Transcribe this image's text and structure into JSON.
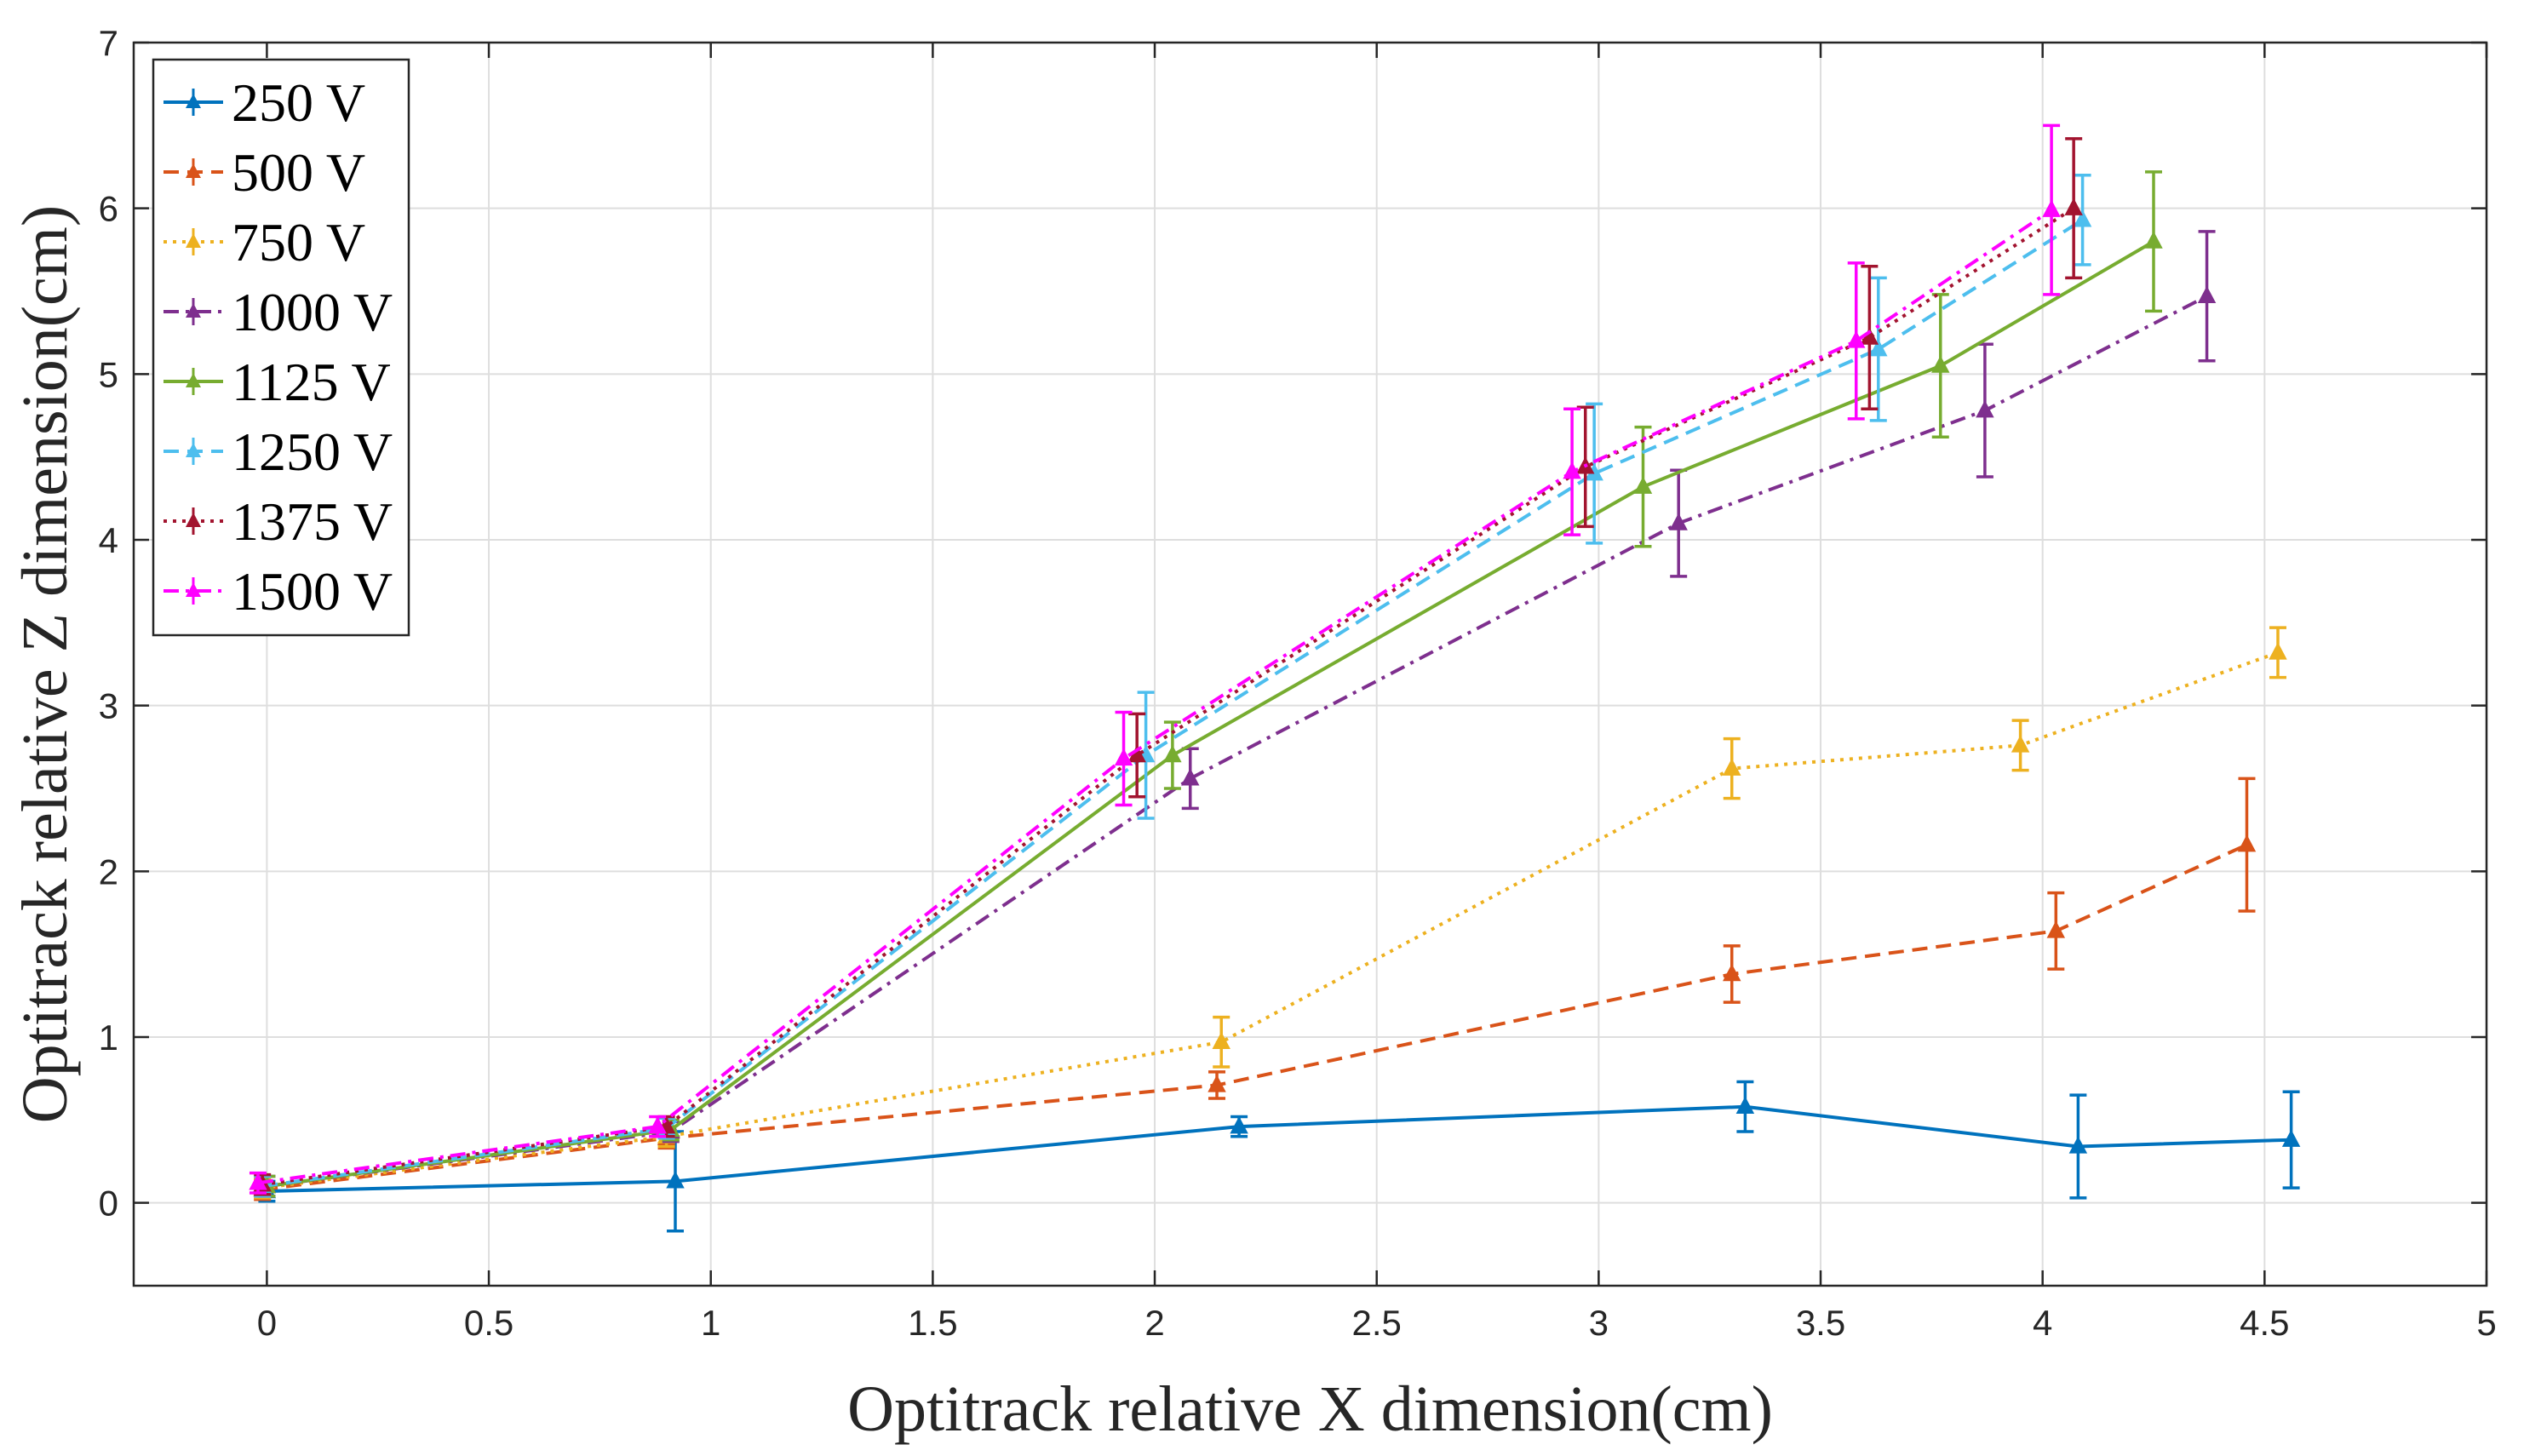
{
  "chart_data": {
    "type": "line",
    "title": "",
    "xlabel": "Optitrack relative X dimension(cm)",
    "ylabel": "Optitrack relative Z dimension(cm)",
    "xlim": [
      -0.3,
      5
    ],
    "ylim": [
      -0.5,
      7
    ],
    "xticks": [
      0,
      0.5,
      1,
      1.5,
      2,
      2.5,
      3,
      3.5,
      4,
      4.5,
      5
    ],
    "yticks": [
      0,
      1,
      2,
      3,
      4,
      5,
      6,
      7
    ],
    "xtick_labels": [
      "0",
      "0.5",
      "1",
      "1.5",
      "2",
      "2.5",
      "3",
      "3.5",
      "4",
      "4.5",
      "5"
    ],
    "ytick_labels": [
      "0",
      "1",
      "2",
      "3",
      "4",
      "5",
      "6",
      "7"
    ],
    "grid": true,
    "legend_position": "top-left",
    "series": [
      {
        "name": "250 V",
        "color": "#0072BD",
        "dash": "solid",
        "points": [
          {
            "x": 0.0,
            "y": 0.07,
            "err": 0.06
          },
          {
            "x": 0.92,
            "y": 0.13,
            "err": 0.3
          },
          {
            "x": 2.19,
            "y": 0.46,
            "err": 0.06
          },
          {
            "x": 3.33,
            "y": 0.58,
            "err": 0.15
          },
          {
            "x": 4.08,
            "y": 0.34,
            "err": 0.31
          },
          {
            "x": 4.56,
            "y": 0.38,
            "err": 0.29
          }
        ]
      },
      {
        "name": "500 V",
        "color": "#D95319",
        "dash": "dashed",
        "points": [
          {
            "x": -0.01,
            "y": 0.08,
            "err": 0.06
          },
          {
            "x": 0.9,
            "y": 0.39,
            "err": 0.06
          },
          {
            "x": 2.14,
            "y": 0.71,
            "err": 0.08
          },
          {
            "x": 3.3,
            "y": 1.38,
            "err": 0.17
          },
          {
            "x": 4.03,
            "y": 1.64,
            "err": 0.23
          },
          {
            "x": 4.46,
            "y": 2.16,
            "err": 0.4
          }
        ]
      },
      {
        "name": "750 V",
        "color": "#EDB120",
        "dash": "dotted",
        "points": [
          {
            "x": -0.01,
            "y": 0.09,
            "err": 0.06
          },
          {
            "x": 0.9,
            "y": 0.4,
            "err": 0.06
          },
          {
            "x": 2.15,
            "y": 0.97,
            "err": 0.15
          },
          {
            "x": 3.3,
            "y": 2.62,
            "err": 0.18
          },
          {
            "x": 3.95,
            "y": 2.76,
            "err": 0.15
          },
          {
            "x": 4.53,
            "y": 3.32,
            "err": 0.15
          }
        ]
      },
      {
        "name": "1000 V",
        "color": "#7E2F8E",
        "dash": "dashdot",
        "points": [
          {
            "x": 0.0,
            "y": 0.1,
            "err": 0.06
          },
          {
            "x": 0.91,
            "y": 0.43,
            "err": 0.06
          },
          {
            "x": 2.08,
            "y": 2.56,
            "err": 0.18
          },
          {
            "x": 3.18,
            "y": 4.1,
            "err": 0.32
          },
          {
            "x": 3.87,
            "y": 4.78,
            "err": 0.4
          },
          {
            "x": 4.37,
            "y": 5.47,
            "err": 0.39
          }
        ]
      },
      {
        "name": "1125 V",
        "color": "#77AC30",
        "dash": "solid",
        "points": [
          {
            "x": 0.0,
            "y": 0.1,
            "err": 0.06
          },
          {
            "x": 0.91,
            "y": 0.44,
            "err": 0.06
          },
          {
            "x": 2.04,
            "y": 2.7,
            "err": 0.2
          },
          {
            "x": 3.1,
            "y": 4.32,
            "err": 0.36
          },
          {
            "x": 3.77,
            "y": 5.05,
            "err": 0.43
          },
          {
            "x": 4.25,
            "y": 5.8,
            "err": 0.42
          }
        ]
      },
      {
        "name": "1250 V",
        "color": "#4DBEEE",
        "dash": "dashed",
        "points": [
          {
            "x": -0.01,
            "y": 0.1,
            "err": 0.06
          },
          {
            "x": 0.9,
            "y": 0.45,
            "err": 0.06
          },
          {
            "x": 1.98,
            "y": 2.7,
            "err": 0.38
          },
          {
            "x": 2.99,
            "y": 4.4,
            "err": 0.42
          },
          {
            "x": 3.63,
            "y": 5.15,
            "err": 0.43
          },
          {
            "x": 4.09,
            "y": 5.93,
            "err": 0.27
          }
        ]
      },
      {
        "name": "1375 V",
        "color": "#A2142F",
        "dash": "dotted",
        "points": [
          {
            "x": -0.01,
            "y": 0.11,
            "err": 0.06
          },
          {
            "x": 0.9,
            "y": 0.46,
            "err": 0.06
          },
          {
            "x": 1.96,
            "y": 2.7,
            "err": 0.25
          },
          {
            "x": 2.97,
            "y": 4.44,
            "err": 0.36
          },
          {
            "x": 3.61,
            "y": 5.22,
            "err": 0.43
          },
          {
            "x": 4.07,
            "y": 6.0,
            "err": 0.42
          }
        ]
      },
      {
        "name": "1500 V",
        "color": "#FF00FF",
        "dash": "dashdot",
        "points": [
          {
            "x": -0.02,
            "y": 0.12,
            "err": 0.06
          },
          {
            "x": 0.88,
            "y": 0.46,
            "err": 0.06
          },
          {
            "x": 1.93,
            "y": 2.68,
            "err": 0.28
          },
          {
            "x": 2.94,
            "y": 4.41,
            "err": 0.38
          },
          {
            "x": 3.58,
            "y": 5.2,
            "err": 0.47
          },
          {
            "x": 4.02,
            "y": 5.99,
            "err": 0.51
          }
        ]
      }
    ]
  }
}
